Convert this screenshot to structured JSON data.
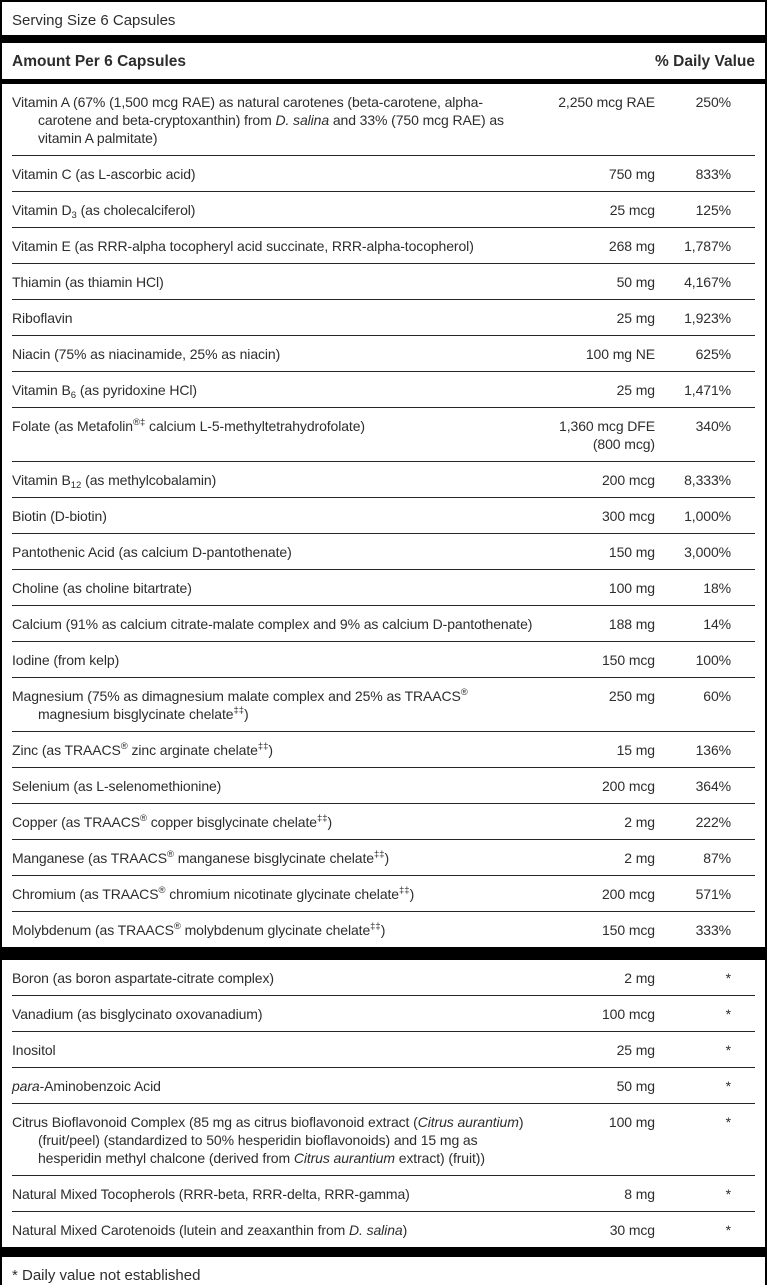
{
  "label": {
    "serving_size": "Serving Size 6 Capsules",
    "columns": {
      "amount_header": "Amount Per 6 Capsules",
      "dv_header": "% Daily Value"
    },
    "footnote": "* Daily value not established",
    "colors": {
      "text": "#2d2d2d",
      "bar": "#000000",
      "divider": "#262626",
      "background": "#ffffff"
    },
    "sections": [
      {
        "rows": [
          {
            "name": [
              {
                "t": "Vitamin A (67% (1,500 mcg RAE) as natural carotenes (beta-carotene, alpha-carotene and beta-cryptoxanthin) from "
              },
              {
                "t": "D. salina",
                "i": true
              },
              {
                "t": " and 33% (750 mcg RAE) as vitamin A palmitate)"
              }
            ],
            "amount": [
              "2,250 mcg RAE"
            ],
            "dv": "250%"
          },
          {
            "name": [
              {
                "t": "Vitamin C (as L-ascorbic acid)"
              }
            ],
            "amount": [
              "750 mg"
            ],
            "dv": "833%"
          },
          {
            "name": [
              {
                "t": "Vitamin D"
              },
              {
                "t": "3",
                "sub": true
              },
              {
                "t": " (as cholecalciferol)"
              }
            ],
            "amount": [
              "25 mcg"
            ],
            "dv": "125%"
          },
          {
            "name": [
              {
                "t": "Vitamin E (as RRR-alpha tocopheryl acid succinate, RRR-alpha-tocopherol)"
              }
            ],
            "amount": [
              "268 mg"
            ],
            "dv": "1,787%"
          },
          {
            "name": [
              {
                "t": "Thiamin (as thiamin HCl)"
              }
            ],
            "amount": [
              "50 mg"
            ],
            "dv": "4,167%"
          },
          {
            "name": [
              {
                "t": "Riboflavin"
              }
            ],
            "amount": [
              "25 mg"
            ],
            "dv": "1,923%"
          },
          {
            "name": [
              {
                "t": "Niacin (75% as niacinamide, 25% as niacin)"
              }
            ],
            "amount": [
              "100 mg NE"
            ],
            "dv": "625%"
          },
          {
            "name": [
              {
                "t": "Vitamin B"
              },
              {
                "t": "6",
                "sub": true
              },
              {
                "t": " (as pyridoxine HCl)"
              }
            ],
            "amount": [
              "25 mg"
            ],
            "dv": "1,471%"
          },
          {
            "name": [
              {
                "t": "Folate (as Metafolin"
              },
              {
                "t": "®‡",
                "sup": true
              },
              {
                "t": " calcium L-5-methyltetrahydrofolate)"
              }
            ],
            "amount": [
              "1,360 mcg DFE",
              "(800 mcg)"
            ],
            "dv": "340%"
          },
          {
            "name": [
              {
                "t": "Vitamin B"
              },
              {
                "t": "12",
                "sub": true
              },
              {
                "t": " (as methylcobalamin)"
              }
            ],
            "amount": [
              "200 mcg"
            ],
            "dv": "8,333%"
          },
          {
            "name": [
              {
                "t": "Biotin (D-biotin)"
              }
            ],
            "amount": [
              "300 mcg"
            ],
            "dv": "1,000%"
          },
          {
            "name": [
              {
                "t": "Pantothenic Acid (as calcium D-pantothenate)"
              }
            ],
            "amount": [
              "150 mg"
            ],
            "dv": "3,000%"
          },
          {
            "name": [
              {
                "t": "Choline (as choline bitartrate)"
              }
            ],
            "amount": [
              "100 mg"
            ],
            "dv": "18%"
          },
          {
            "name": [
              {
                "t": "Calcium (91% as calcium citrate-malate complex and 9% as calcium D-pantothenate)"
              }
            ],
            "amount": [
              "188 mg"
            ],
            "dv": "14%"
          },
          {
            "name": [
              {
                "t": "Iodine (from kelp)"
              }
            ],
            "amount": [
              "150 mcg"
            ],
            "dv": "100%"
          },
          {
            "name": [
              {
                "t": "Magnesium (75% as dimagnesium malate complex and 25% as TRAACS"
              },
              {
                "t": "®",
                "sup": true
              },
              {
                "t": " magnesium bisglycinate chelate"
              },
              {
                "t": "‡‡",
                "sup": true
              },
              {
                "t": ")"
              }
            ],
            "amount": [
              "250 mg"
            ],
            "dv": "60%"
          },
          {
            "name": [
              {
                "t": "Zinc (as TRAACS"
              },
              {
                "t": "®",
                "sup": true
              },
              {
                "t": " zinc arginate chelate"
              },
              {
                "t": "‡‡",
                "sup": true
              },
              {
                "t": ")"
              }
            ],
            "amount": [
              "15 mg"
            ],
            "dv": "136%"
          },
          {
            "name": [
              {
                "t": "Selenium (as L-selenomethionine)"
              }
            ],
            "amount": [
              "200 mcg"
            ],
            "dv": "364%"
          },
          {
            "name": [
              {
                "t": "Copper (as TRAACS"
              },
              {
                "t": "®",
                "sup": true
              },
              {
                "t": " copper bisglycinate chelate"
              },
              {
                "t": "‡‡",
                "sup": true
              },
              {
                "t": ")"
              }
            ],
            "amount": [
              "2 mg"
            ],
            "dv": "222%"
          },
          {
            "name": [
              {
                "t": "Manganese (as TRAACS"
              },
              {
                "t": "®",
                "sup": true
              },
              {
                "t": " manganese bisglycinate chelate"
              },
              {
                "t": "‡‡",
                "sup": true
              },
              {
                "t": ")"
              }
            ],
            "amount": [
              "2 mg"
            ],
            "dv": "87%"
          },
          {
            "name": [
              {
                "t": "Chromium (as TRAACS"
              },
              {
                "t": "®",
                "sup": true
              },
              {
                "t": " chromium nicotinate glycinate chelate"
              },
              {
                "t": "‡‡",
                "sup": true
              },
              {
                "t": ")"
              }
            ],
            "amount": [
              "200 mcg"
            ],
            "dv": "571%"
          },
          {
            "name": [
              {
                "t": "Molybdenum (as TRAACS"
              },
              {
                "t": "®",
                "sup": true
              },
              {
                "t": " molybdenum glycinate chelate"
              },
              {
                "t": "‡‡",
                "sup": true
              },
              {
                "t": ")"
              }
            ],
            "amount": [
              "150 mcg"
            ],
            "dv": "333%"
          }
        ]
      },
      {
        "rows": [
          {
            "name": [
              {
                "t": "Boron (as boron aspartate-citrate complex)"
              }
            ],
            "amount": [
              "2 mg"
            ],
            "dv": "*"
          },
          {
            "name": [
              {
                "t": "Vanadium (as bisglycinato oxovanadium)"
              }
            ],
            "amount": [
              "100 mcg"
            ],
            "dv": "*"
          },
          {
            "name": [
              {
                "t": "Inositol"
              }
            ],
            "amount": [
              "25 mg"
            ],
            "dv": "*"
          },
          {
            "name": [
              {
                "t": "para",
                "i": true
              },
              {
                "t": "-Aminobenzoic Acid"
              }
            ],
            "amount": [
              "50 mg"
            ],
            "dv": "*"
          },
          {
            "name": [
              {
                "t": "Citrus Bioflavonoid Complex (85 mg as citrus bioflavonoid extract ("
              },
              {
                "t": "Citrus aurantium",
                "i": true
              },
              {
                "t": ") (fruit/peel) (standardized to 50% hesperidin bioflavonoids) and 15 mg as hesperidin methyl chalcone (derived from "
              },
              {
                "t": "Citrus aurantium",
                "i": true
              },
              {
                "t": " extract) (fruit))"
              }
            ],
            "amount": [
              "100 mg"
            ],
            "dv": "*"
          },
          {
            "name": [
              {
                "t": "Natural Mixed Tocopherols (RRR-beta, RRR-delta, RRR-gamma)"
              }
            ],
            "amount": [
              "8 mg"
            ],
            "dv": "*"
          },
          {
            "name": [
              {
                "t": "Natural Mixed Carotenoids (lutein and zeaxanthin from "
              },
              {
                "t": "D. salina",
                "i": true
              },
              {
                "t": ")"
              }
            ],
            "amount": [
              "30 mcg"
            ],
            "dv": "*"
          }
        ]
      }
    ]
  }
}
